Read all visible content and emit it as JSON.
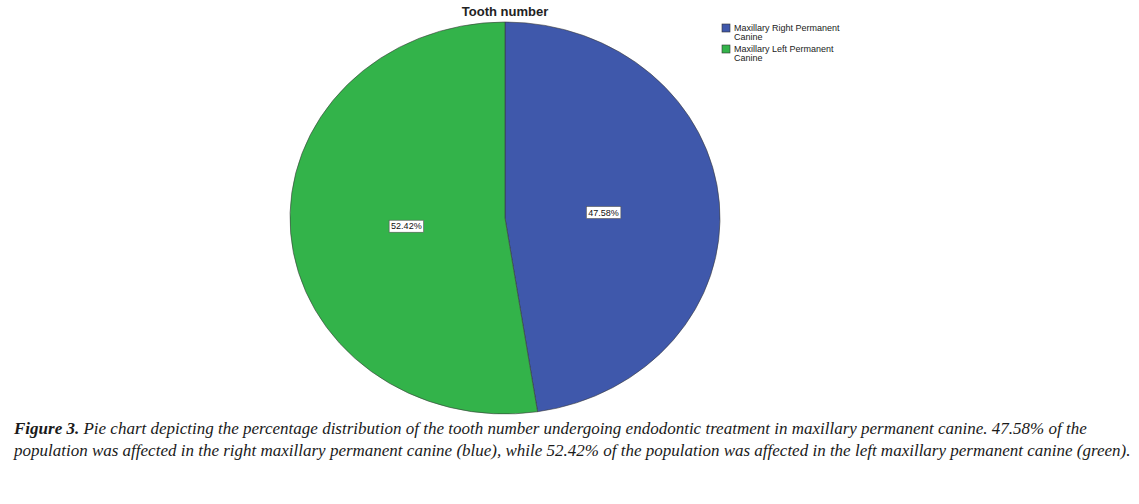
{
  "chart_data": {
    "type": "pie",
    "title": "Tooth number",
    "categories": [
      "Maxillary Right Permanent Canine",
      "Maxillary Left Permanent Canine"
    ],
    "values": [
      47.58,
      52.42
    ],
    "value_labels": [
      "47.58%",
      "52.42%"
    ],
    "colors": [
      "#3f58ab",
      "#33b34a"
    ],
    "data_labels": true,
    "legend": "upper right",
    "caption": {
      "label": "Figure 3.",
      "text": "Pie chart depicting the percentage distribution of the tooth number undergoing endodontic treatment in maxillary permanent canine. 47.58% of the population was affected in the right maxillary permanent canine (blue), while 52.42% of the population was affected in the left maxillary permanent canine (green)."
    }
  }
}
